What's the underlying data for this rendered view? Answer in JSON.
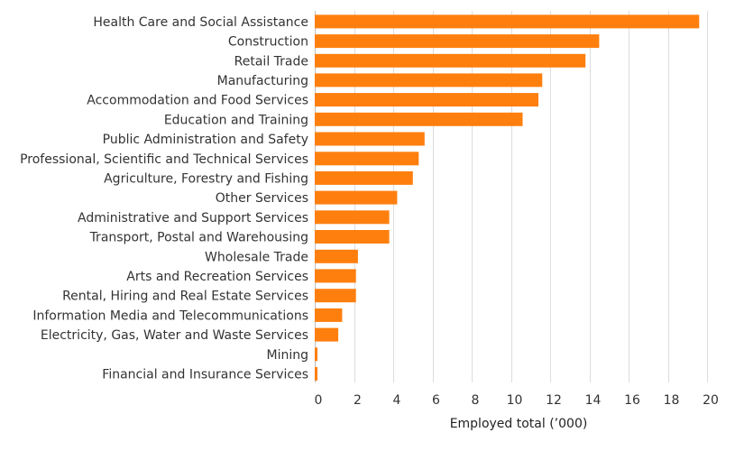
{
  "chart_data": {
    "type": "bar",
    "orientation": "horizontal",
    "title": "",
    "xlabel": "Employed total (’000)",
    "ylabel": "",
    "xlim": [
      0,
      20.5
    ],
    "x_ticks": [
      0,
      2,
      4,
      6,
      8,
      10,
      12,
      14,
      16,
      18,
      20
    ],
    "grid": true,
    "bar_color": "#ff7f0e",
    "categories": [
      "Health Care and Social Assistance",
      "Construction",
      "Retail Trade",
      "Manufacturing",
      "Accommodation and Food Services",
      "Education and Training",
      "Public Administration and Safety",
      "Professional, Scientific and Technical Services",
      "Agriculture, Forestry and Fishing",
      "Other Services",
      "Administrative and Support Services",
      "Transport, Postal and Warehousing",
      "Wholesale Trade",
      "Arts and Recreation Services",
      "Rental, Hiring and Real Estate Services",
      "Information Media and Telecommunications",
      "Electricity, Gas, Water and Waste Services",
      "Mining",
      "Financial and Insurance Services"
    ],
    "values": [
      19.6,
      14.5,
      13.8,
      11.6,
      11.4,
      10.6,
      5.6,
      5.3,
      5.0,
      4.2,
      3.8,
      3.8,
      2.2,
      2.1,
      2.1,
      1.4,
      1.2,
      0.1,
      0.1
    ]
  }
}
